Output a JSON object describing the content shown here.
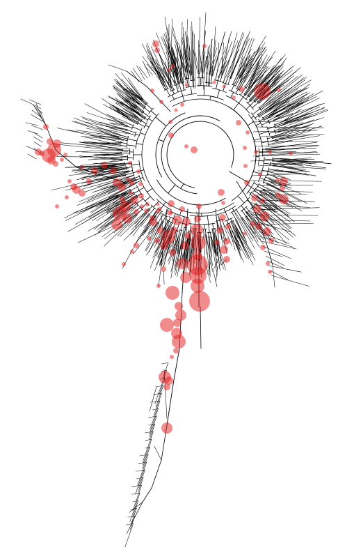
{
  "colors": {
    "background": "#ffffff",
    "branch": "#000000",
    "marker": "#e31a1c"
  },
  "marker_opacity": 0.5
}
